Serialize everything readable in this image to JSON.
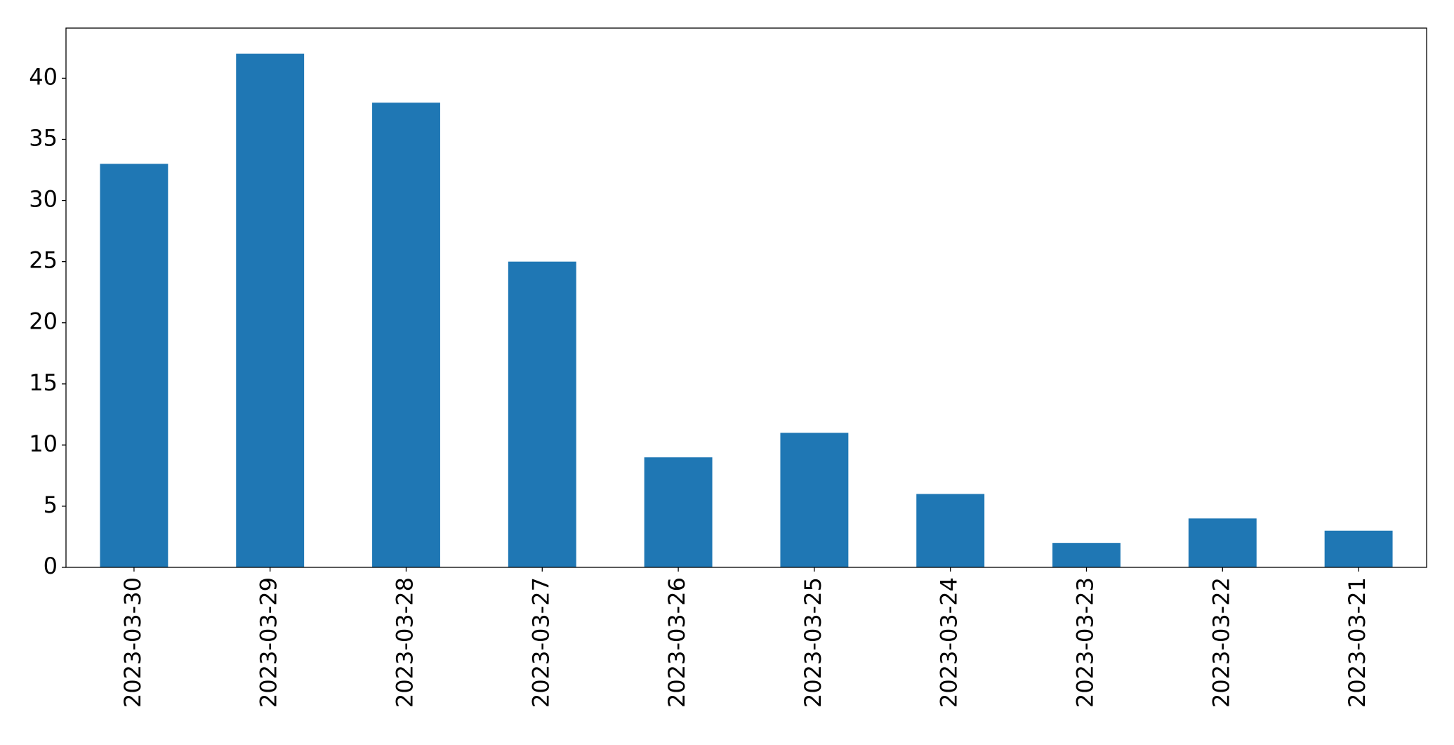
{
  "chart_data": {
    "type": "bar",
    "categories": [
      "2023-03-30",
      "2023-03-29",
      "2023-03-28",
      "2023-03-27",
      "2023-03-26",
      "2023-03-25",
      "2023-03-24",
      "2023-03-23",
      "2023-03-22",
      "2023-03-21"
    ],
    "values": [
      33,
      42,
      38,
      25,
      9,
      11,
      6,
      2,
      4,
      3
    ],
    "color": "#1f77b4",
    "ylim": [
      0,
      44.1
    ],
    "yticks": [
      0,
      5,
      10,
      15,
      20,
      25,
      30,
      35,
      40
    ],
    "grid": false
  }
}
